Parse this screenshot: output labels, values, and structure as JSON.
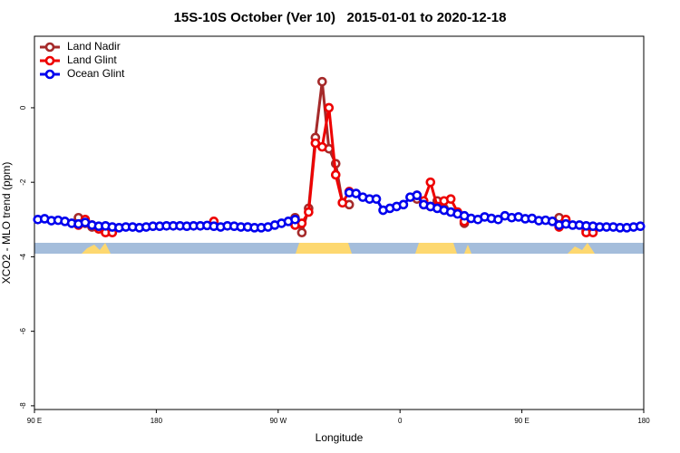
{
  "chart_data": {
    "type": "line",
    "title": "15S-10S October (Ver 10)   2015-01-01 to 2020-12-18",
    "x_label": "Longitude",
    "y_label": "XCO2 - MLO trend (ppm)",
    "xlim": [
      90,
      540
    ],
    "ylim": [
      -8.1,
      1.92
    ],
    "xticks": [
      {
        "value": 90,
        "label": "90 E"
      },
      180,
      {
        "value": 270,
        "label": "90 W"
      },
      {
        "value": 360,
        "label": "0"
      },
      {
        "value": 450,
        "label": "90 E"
      },
      {
        "value": 540,
        "label": "180"
      }
    ],
    "yticks": [
      0,
      -2,
      -4,
      -6,
      -8
    ],
    "legend": "top-left",
    "x": [
      92.5,
      97.5,
      102.5,
      107.5,
      112.5,
      117.5,
      122.5,
      127.5,
      132.5,
      137.5,
      142.5,
      147.5,
      152.5,
      157.5,
      162.5,
      167.5,
      172.5,
      177.5,
      182.5,
      187.5,
      192.5,
      197.5,
      202.5,
      207.5,
      212.5,
      217.5,
      222.5,
      227.5,
      232.5,
      237.5,
      242.5,
      247.5,
      252.5,
      257.5,
      262.5,
      267.5,
      272.5,
      277.5,
      282.5,
      287.5,
      292.5,
      297.5,
      302.5,
      307.5,
      312.5,
      317.5,
      322.5,
      327.5,
      332.5,
      337.5,
      342.5,
      347.5,
      352.5,
      357.5,
      362.5,
      367.5,
      372.5,
      377.5,
      382.5,
      387.5,
      392.5,
      397.5,
      402.5,
      407.5,
      412.5,
      417.5,
      422.5,
      427.5,
      432.5,
      437.5,
      442.5,
      447.5,
      452.5,
      457.5,
      462.5,
      467.5,
      472.5,
      477.5,
      482.5,
      487.5,
      492.5,
      497.5,
      502.5,
      507.5,
      512.5,
      517.5,
      522.5,
      527.5,
      532.5,
      537.5
    ],
    "series": [
      {
        "name": "Land Nadir",
        "color": "#a52a2a",
        "values": [
          null,
          null,
          null,
          null,
          null,
          null,
          -2.95,
          -3.1,
          -3.2,
          -3.25,
          -3.3,
          null,
          null,
          null,
          null,
          null,
          null,
          null,
          null,
          null,
          null,
          null,
          null,
          null,
          null,
          null,
          null,
          null,
          null,
          null,
          null,
          null,
          null,
          null,
          null,
          null,
          null,
          null,
          -2.95,
          -3.35,
          -2.7,
          -0.8,
          0.7,
          -1.1,
          -1.5,
          -2.55,
          -2.6,
          null,
          null,
          null,
          null,
          null,
          null,
          null,
          null,
          null,
          -2.45,
          -2.6,
          -2.65,
          -2.5,
          -2.7,
          null,
          null,
          -3.1,
          null,
          null,
          null,
          null,
          null,
          null,
          null,
          null,
          null,
          null,
          null,
          null,
          null,
          -2.95,
          -3.1,
          null,
          null,
          -3.3,
          -3.3,
          null,
          null,
          null,
          null,
          null,
          null,
          null
        ]
      },
      {
        "name": "Land Glint",
        "color": "#ee0000",
        "values": [
          null,
          null,
          null,
          null,
          null,
          null,
          -3.15,
          -3.0,
          -3.15,
          -3.25,
          -3.35,
          -3.35,
          null,
          null,
          null,
          null,
          null,
          null,
          null,
          null,
          null,
          null,
          null,
          null,
          null,
          null,
          -3.05,
          null,
          null,
          null,
          null,
          null,
          null,
          null,
          null,
          null,
          null,
          null,
          -3.15,
          -3.1,
          -2.8,
          -0.95,
          -1.05,
          0.0,
          -1.8,
          -2.55,
          -2.25,
          null,
          null,
          null,
          null,
          null,
          null,
          null,
          null,
          null,
          -2.35,
          -2.5,
          -2.0,
          -2.65,
          -2.5,
          -2.45,
          -2.8,
          -3.05,
          null,
          null,
          null,
          null,
          null,
          null,
          null,
          null,
          null,
          null,
          null,
          null,
          null,
          -3.2,
          -3.0,
          null,
          null,
          -3.35,
          -3.35,
          null,
          null,
          null,
          null,
          null,
          null,
          null
        ]
      },
      {
        "name": "Ocean Glint",
        "color": "#0000ee",
        "values": [
          -3.0,
          -2.98,
          -3.03,
          -3.02,
          -3.05,
          -3.1,
          -3.12,
          -3.08,
          -3.15,
          -3.18,
          -3.17,
          -3.2,
          -3.22,
          -3.2,
          -3.2,
          -3.22,
          -3.2,
          -3.18,
          -3.18,
          -3.17,
          -3.17,
          -3.17,
          -3.18,
          -3.17,
          -3.17,
          -3.16,
          -3.18,
          -3.2,
          -3.17,
          -3.18,
          -3.2,
          -3.2,
          -3.22,
          -3.22,
          -3.2,
          -3.15,
          -3.1,
          -3.05,
          -3.0,
          null,
          null,
          null,
          null,
          null,
          null,
          null,
          -2.28,
          -2.3,
          -2.4,
          -2.45,
          -2.45,
          -2.75,
          -2.7,
          -2.65,
          -2.6,
          -2.4,
          -2.35,
          -2.6,
          -2.65,
          -2.7,
          -2.75,
          -2.8,
          -2.85,
          -2.9,
          -2.97,
          -3.0,
          -2.93,
          -2.97,
          -3.0,
          -2.9,
          -2.95,
          -2.93,
          -2.98,
          -2.97,
          -3.03,
          -3.02,
          -3.05,
          -3.15,
          -3.12,
          -3.15,
          -3.15,
          -3.17,
          -3.18,
          -3.2,
          -3.2,
          -3.2,
          -3.22,
          -3.22,
          -3.2,
          -3.18
        ]
      }
    ]
  }
}
